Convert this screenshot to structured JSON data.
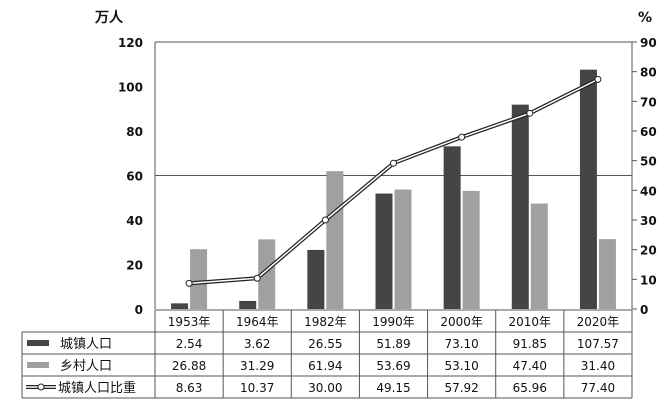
{
  "chart_data": {
    "type": "bar",
    "left_unit": "万人",
    "right_unit": "%",
    "categories": [
      "1953年",
      "1964年",
      "1982年",
      "1990年",
      "2000年",
      "2010年",
      "2020年"
    ],
    "y_left": {
      "range": [
        0,
        120
      ],
      "ticks": [
        "0",
        "20",
        "40",
        "60",
        "80",
        "100",
        "120"
      ]
    },
    "y_right": {
      "range": [
        0,
        90
      ],
      "ticks": [
        "0",
        "10",
        "20",
        "30",
        "40",
        "50",
        "60",
        "70",
        "80",
        "90"
      ]
    },
    "grid": "horizontal at 60 and 120",
    "legend_placement": "data table below",
    "series": [
      {
        "name": "城镇人口",
        "type": "bar",
        "axis": "left",
        "color": "#454545",
        "values": [
          2.54,
          3.62,
          26.55,
          51.89,
          73.1,
          91.85,
          107.57
        ],
        "labels": [
          "2.54",
          "3.62",
          "26.55",
          "51.89",
          "73.10",
          "91.85",
          "107.57"
        ]
      },
      {
        "name": "乡村人口",
        "type": "bar",
        "axis": "left",
        "color": "#a0a0a0",
        "values": [
          26.88,
          31.29,
          61.94,
          53.69,
          53.1,
          47.4,
          31.4
        ],
        "labels": [
          "26.88",
          "31.29",
          "61.94",
          "53.69",
          "53.10",
          "47.40",
          "31.40"
        ]
      },
      {
        "name": "城镇人口比重",
        "type": "line",
        "axis": "right",
        "color": "#222222",
        "values": [
          8.63,
          10.37,
          30.0,
          49.15,
          57.92,
          65.96,
          77.4
        ],
        "labels": [
          "8.63",
          "10.37",
          "30.00",
          "49.15",
          "57.92",
          "65.96",
          "77.40"
        ]
      }
    ]
  }
}
